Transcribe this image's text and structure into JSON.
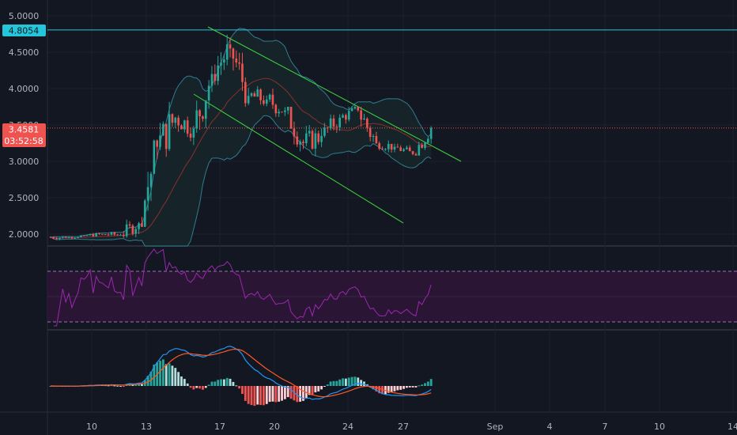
{
  "colors": {
    "background": "#131722",
    "up": "#26a69a",
    "down": "#ef5350",
    "grid": "#1e222d",
    "separator": "#2a2e39",
    "bb": "#2f7d8f",
    "bb_fill": "#1a2a30",
    "basis": "#8a2f2c",
    "channel": "#3fd63f",
    "h_line": "#26c6da",
    "price_line": "#ef5350",
    "rsi": "#9c27b0",
    "rsi_band": "#2a1534",
    "macd": "#2196f3",
    "signal": "#ff5722"
  },
  "price_axis": {
    "ticks": [
      "5.0000",
      "4.5000",
      "4.0000",
      "3.5000",
      "3.0000",
      "2.5000",
      "2.0000"
    ],
    "tick_values": [
      5.0,
      4.5,
      4.0,
      3.5,
      3.0,
      2.5,
      2.0
    ],
    "range": [
      1.9,
      5.2
    ],
    "hline_label": "4.8054",
    "last_price_label": "3.4581",
    "countdown_label": "03:52:58"
  },
  "time_axis": {
    "labels": [
      "10",
      "13",
      "17",
      "20",
      "24",
      "27",
      "Sep",
      "4",
      "7",
      "10",
      "14"
    ]
  },
  "chart_data": {
    "type": "candlestick",
    "timeframe": "4h",
    "x_range": [
      "Aug 8",
      "Sep 14"
    ],
    "y_range": [
      1.9,
      5.2
    ],
    "hline": 4.8054,
    "last_price": 3.4581,
    "ohlc_daily_approx": [
      {
        "date": "Aug 8",
        "o": 1.96,
        "h": 2.0,
        "l": 1.9,
        "c": 1.95
      },
      {
        "date": "Aug 9",
        "o": 1.95,
        "h": 2.0,
        "l": 1.93,
        "c": 1.98
      },
      {
        "date": "Aug 10",
        "o": 1.98,
        "h": 2.04,
        "l": 1.95,
        "c": 2.0
      },
      {
        "date": "Aug 11",
        "o": 2.0,
        "h": 2.06,
        "l": 1.95,
        "c": 1.99
      },
      {
        "date": "Aug 12",
        "o": 1.99,
        "h": 2.3,
        "l": 1.95,
        "c": 2.15
      },
      {
        "date": "Aug 13",
        "o": 2.15,
        "h": 3.3,
        "l": 2.1,
        "c": 3.2
      },
      {
        "date": "Aug 14",
        "o": 3.2,
        "h": 3.95,
        "l": 2.95,
        "c": 3.6
      },
      {
        "date": "Aug 15",
        "o": 3.6,
        "h": 3.75,
        "l": 3.2,
        "c": 3.45
      },
      {
        "date": "Aug 16",
        "o": 3.45,
        "h": 4.4,
        "l": 3.35,
        "c": 4.2
      },
      {
        "date": "Aug 17",
        "o": 4.2,
        "h": 4.78,
        "l": 4.05,
        "c": 4.55
      },
      {
        "date": "Aug 18",
        "o": 4.55,
        "h": 4.6,
        "l": 3.75,
        "c": 3.9
      },
      {
        "date": "Aug 19",
        "o": 3.9,
        "h": 4.05,
        "l": 3.6,
        "c": 3.85
      },
      {
        "date": "Aug 20",
        "o": 3.85,
        "h": 4.0,
        "l": 3.5,
        "c": 3.7
      },
      {
        "date": "Aug 21",
        "o": 3.7,
        "h": 3.75,
        "l": 3.1,
        "c": 3.25
      },
      {
        "date": "Aug 22",
        "o": 3.25,
        "h": 3.5,
        "l": 2.95,
        "c": 3.35
      },
      {
        "date": "Aug 23",
        "o": 3.35,
        "h": 3.7,
        "l": 3.25,
        "c": 3.6
      },
      {
        "date": "Aug 24",
        "o": 3.6,
        "h": 3.8,
        "l": 3.5,
        "c": 3.7
      },
      {
        "date": "Aug 25",
        "o": 3.7,
        "h": 3.75,
        "l": 3.15,
        "c": 3.25
      },
      {
        "date": "Aug 26",
        "o": 3.25,
        "h": 3.35,
        "l": 3.1,
        "c": 3.2
      },
      {
        "date": "Aug 27",
        "o": 3.2,
        "h": 3.25,
        "l": 3.02,
        "c": 3.1
      },
      {
        "date": "Aug 28",
        "o": 3.1,
        "h": 3.5,
        "l": 3.08,
        "c": 3.4581
      }
    ]
  }
}
